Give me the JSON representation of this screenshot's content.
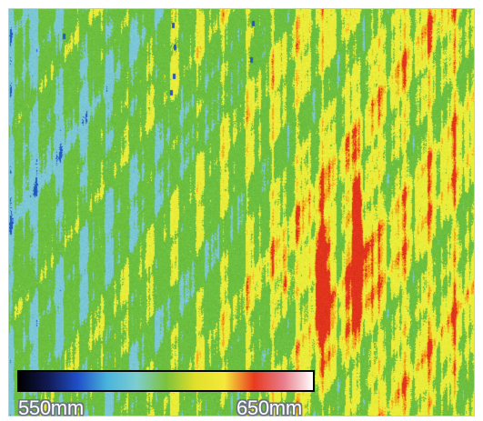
{
  "colorbar": {
    "min_label": "550mm",
    "max_label": "650mm",
    "stops": [
      "#000000",
      "#121a55",
      "#1f50c8",
      "#49b4dc",
      "#7ecdd0",
      "#7cc23c",
      "#e2e02a",
      "#f5e83a",
      "#e83a1e",
      "#e87c8a",
      "#ffffff"
    ]
  },
  "palette": {
    "blue": "#2256c4",
    "cyan": "#7cc7d6",
    "green": "#6cbf3f",
    "yellow": "#eaec3a",
    "orange": "#f2a81c",
    "red": "#e1341d"
  }
}
